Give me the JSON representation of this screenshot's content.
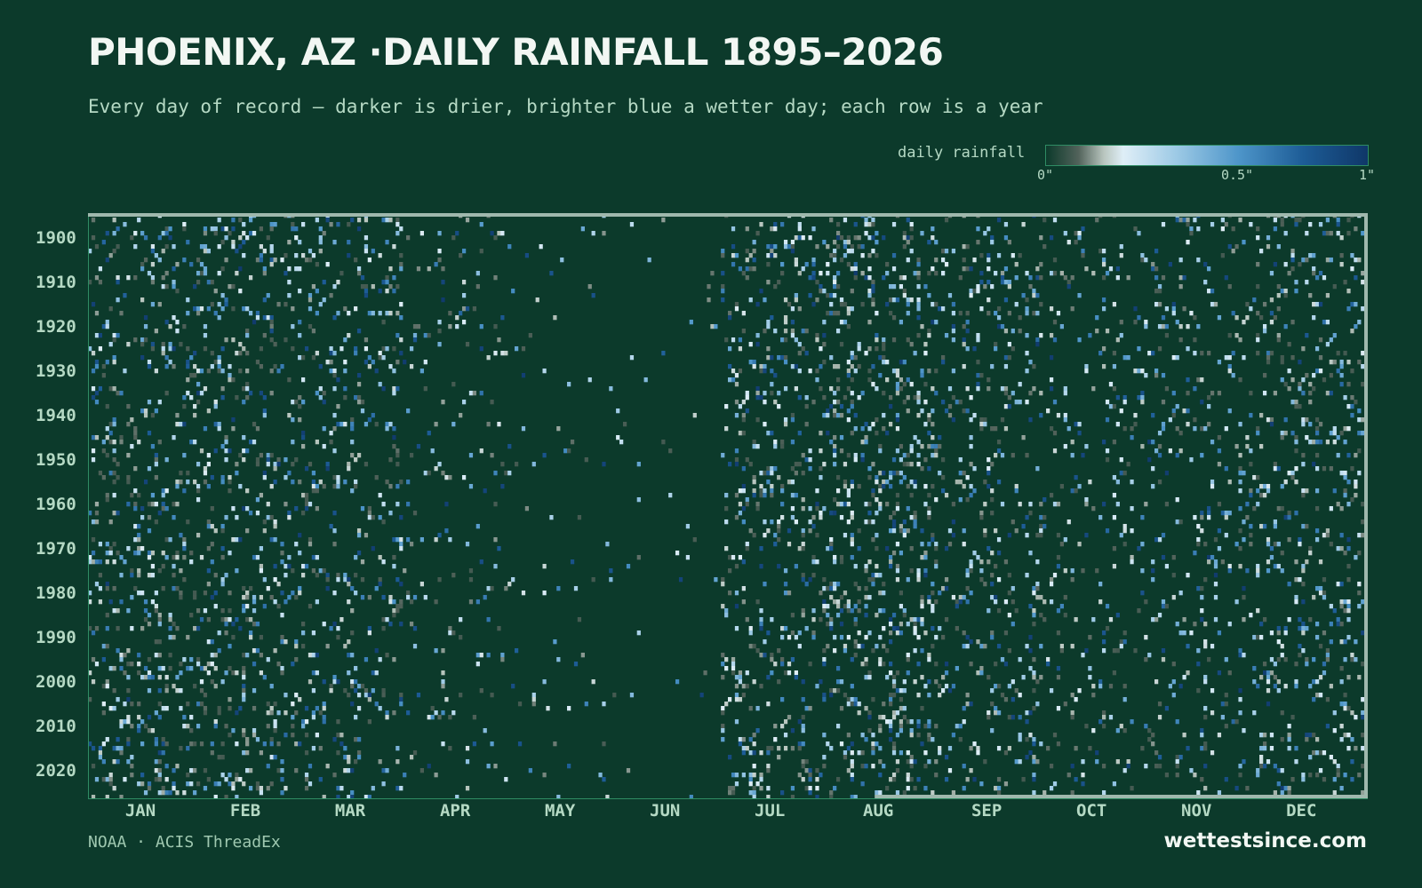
{
  "title": "PHOENIX, AZ ·DAILY RAINFALL 1895–2026",
  "subtitle": "Every day of record — darker is drier, brighter blue a wetter day; each row is a year",
  "legend": {
    "label": "daily rainfall",
    "ticks": [
      {
        "label": "0\"",
        "value": 0
      },
      {
        "label": "0.5\"",
        "value": 0.5
      },
      {
        "label": "1\"",
        "value": 1
      }
    ]
  },
  "source": "NOAA · ACIS ThreadEx",
  "brand": "wettestsince.com",
  "colors": {
    "background": "#0c3a2b",
    "text": "#b5d9c4",
    "frame": "#2f8c64",
    "highlight_line": "#9fb8ad",
    "scale": [
      "#0c3a2b",
      "#51625a",
      "#b9c6bf",
      "#dfeef7",
      "#9fcbe6",
      "#4d95c9",
      "#1d5c96",
      "#0f3768"
    ]
  },
  "chart_data": {
    "type": "heatmap",
    "title": "PHOENIX, AZ ·DAILY RAINFALL 1895–2026",
    "x_axis": "day of year",
    "y_axis": "year",
    "year_range": [
      1895,
      2026
    ],
    "day_range": [
      1,
      366
    ],
    "y_ticks": [
      1900,
      1910,
      1920,
      1930,
      1940,
      1950,
      1960,
      1970,
      1980,
      1990,
      2000,
      2010,
      2020
    ],
    "months": [
      {
        "label": "JAN",
        "mid_day": 16
      },
      {
        "label": "FEB",
        "mid_day": 46
      },
      {
        "label": "MAR",
        "mid_day": 76
      },
      {
        "label": "APR",
        "mid_day": 106
      },
      {
        "label": "MAY",
        "mid_day": 136
      },
      {
        "label": "JUN",
        "mid_day": 166
      },
      {
        "label": "JUL",
        "mid_day": 196
      },
      {
        "label": "AUG",
        "mid_day": 227
      },
      {
        "label": "SEP",
        "mid_day": 258
      },
      {
        "label": "OCT",
        "mid_day": 288
      },
      {
        "label": "NOV",
        "mid_day": 318
      },
      {
        "label": "DEC",
        "mid_day": 348
      }
    ],
    "value_range_inches": [
      0,
      1
    ],
    "wet_day_frequency_by_month": {
      "JAN": 0.13,
      "FEB": 0.14,
      "MAR": 0.12,
      "APR": 0.05,
      "MAY": 0.02,
      "JUN": 0.01,
      "JUL": 0.13,
      "AUG": 0.17,
      "SEP": 0.1,
      "OCT": 0.07,
      "NOV": 0.08,
      "DEC": 0.12
    },
    "typical_wet_day_inches": 0.2,
    "latest_day": "2026-08-13"
  }
}
